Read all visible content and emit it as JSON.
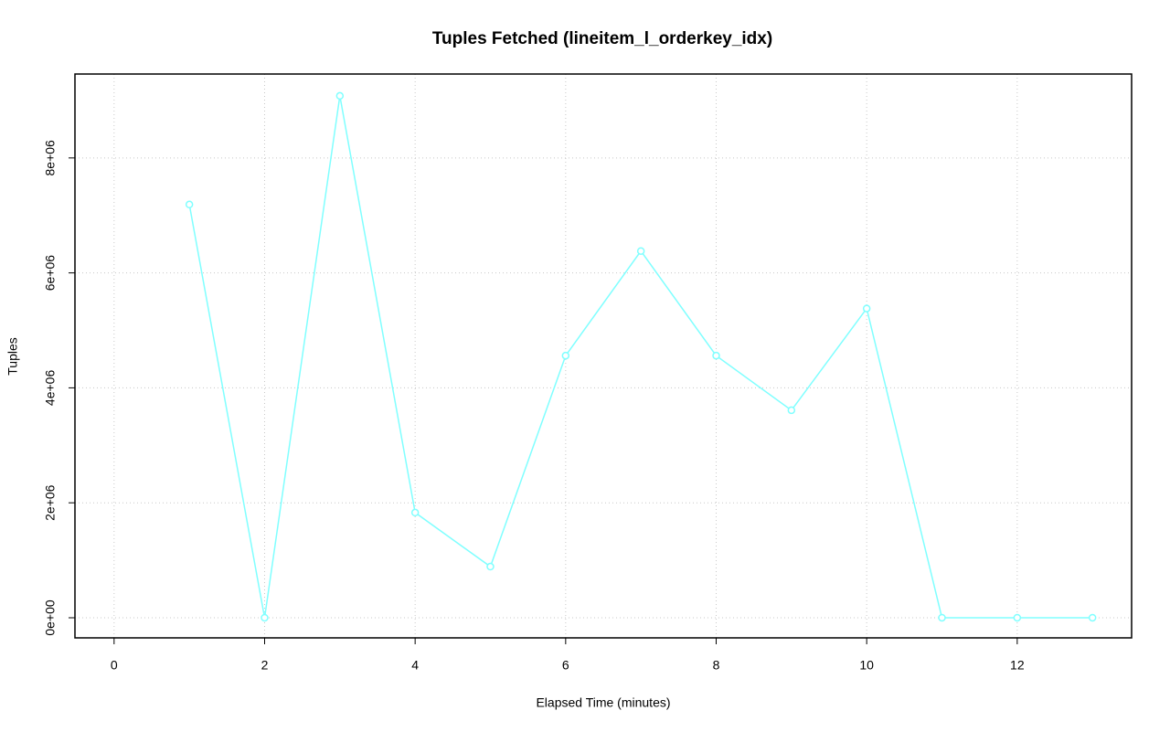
{
  "chart_data": {
    "type": "line",
    "title": "Tuples Fetched (lineitem_l_orderkey_idx)",
    "x_label": "Elapsed Time (minutes)",
    "y_label": "Tuples",
    "x": [
      1,
      2,
      3,
      4,
      5,
      6,
      7,
      8,
      9,
      10,
      11,
      12,
      13
    ],
    "series": [
      {
        "name": "lineitem_l_orderkey_idx",
        "color": "#80ffff",
        "values": [
          7190000,
          0,
          9080000,
          1830000,
          890000,
          4560000,
          6380000,
          4560000,
          3610000,
          5380000,
          0,
          0,
          0
        ]
      }
    ],
    "xlim": [
      -0.52,
      13.52
    ],
    "xticks": [
      0,
      2,
      4,
      6,
      8,
      10,
      12
    ],
    "ylim": [
      -350000,
      9460000
    ],
    "yticks": [
      {
        "value": 0,
        "label": "0e+00"
      },
      {
        "value": 2000000,
        "label": "2e+06"
      },
      {
        "value": 4000000,
        "label": "4e+06"
      },
      {
        "value": 6000000,
        "label": "6e+06"
      },
      {
        "value": 8000000,
        "label": "8e+06"
      }
    ],
    "grid": true
  }
}
